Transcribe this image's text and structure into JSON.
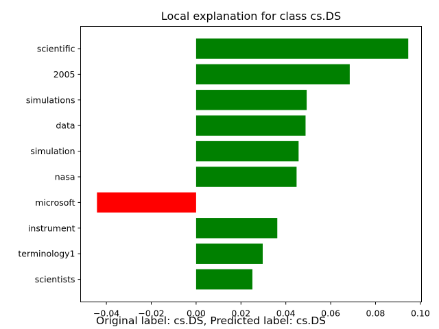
{
  "chart_data": {
    "type": "bar",
    "orientation": "horizontal",
    "title": "Local explanation for class cs.DS",
    "xlabel": "",
    "ylabel": "",
    "categories": [
      "scientific",
      "2005",
      "simulations",
      "data",
      "simulation",
      "nasa",
      "microsoft",
      "instrument",
      "terminology1",
      "scientists"
    ],
    "values": [
      0.0946,
      0.0685,
      0.0493,
      0.0488,
      0.0457,
      0.0448,
      -0.0442,
      0.0362,
      0.0297,
      0.0251
    ],
    "xlim": [
      -0.0515,
      0.1005
    ],
    "xticks": [
      -0.04,
      -0.02,
      0.0,
      0.02,
      0.04,
      0.06,
      0.08,
      0.1
    ],
    "xtick_labels": [
      "−0.04",
      "−0.02",
      "0.00",
      "0.02",
      "0.04",
      "0.06",
      "0.08",
      "0.10"
    ],
    "grid": false,
    "colors": {
      "positive": "#008000",
      "negative": "#ff0000"
    }
  },
  "caption": "Original label: cs.DS, Predicted label: cs.DS"
}
